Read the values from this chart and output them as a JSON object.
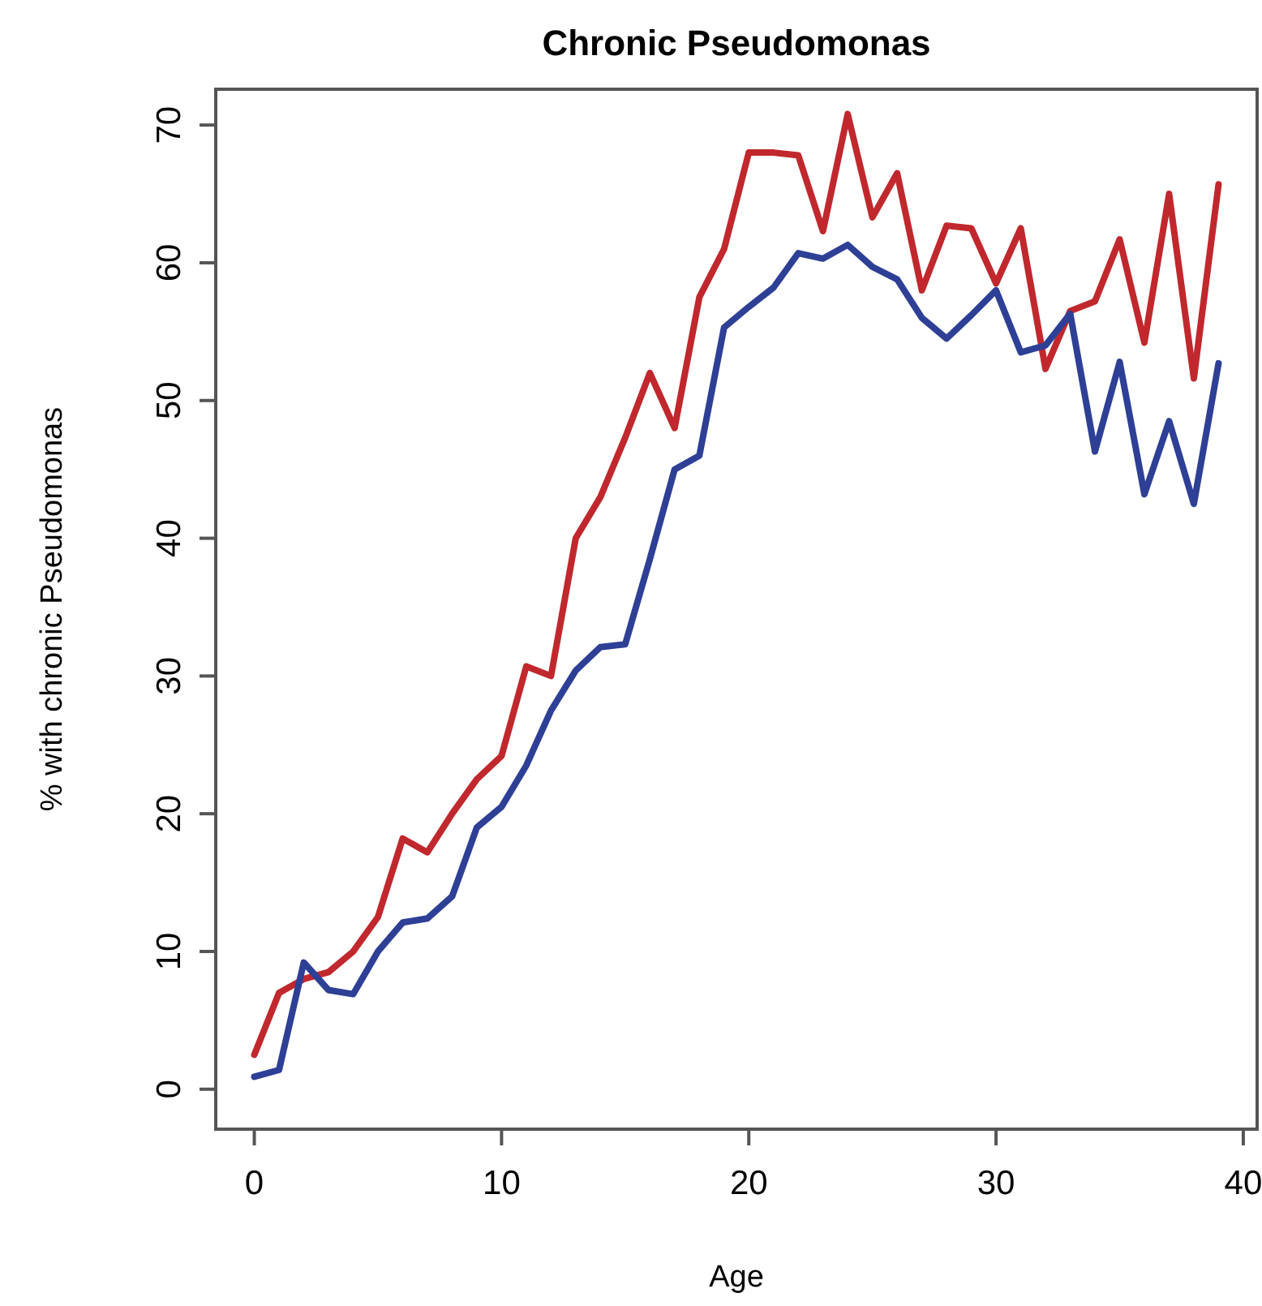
{
  "chart_data": {
    "type": "line",
    "title": "Chronic Pseudomonas",
    "xlabel": "Age",
    "ylabel": "% with chronic Pseudomonas",
    "x": [
      0,
      1,
      2,
      3,
      4,
      5,
      6,
      7,
      8,
      9,
      10,
      11,
      12,
      13,
      14,
      15,
      16,
      17,
      18,
      19,
      20,
      21,
      22,
      23,
      24,
      25,
      26,
      27,
      28,
      29,
      30,
      31,
      32,
      33,
      34,
      35,
      36,
      37,
      38,
      39
    ],
    "series": [
      {
        "color": "#c0282d",
        "values": [
          2.5,
          7,
          8,
          8.5,
          10,
          12.5,
          18.2,
          17.2,
          20,
          22.5,
          24.2,
          30.7,
          30,
          40,
          43,
          47.3,
          52,
          48,
          57.5,
          61,
          68,
          68,
          67.8,
          62.3,
          70.8,
          63.3,
          66.5,
          58,
          62.7,
          62.5,
          58.5,
          62.5,
          52.3,
          56.5,
          57.2,
          61.7,
          54.2,
          65,
          51.6,
          65.7
        ]
      },
      {
        "color": "#2e3f96",
        "values": [
          0.9,
          1.4,
          9.2,
          7.2,
          6.9,
          10,
          12.1,
          12.4,
          14,
          19,
          20.5,
          23.5,
          27.5,
          30.4,
          32.1,
          32.3,
          38.5,
          45,
          46,
          55.3,
          56.8,
          58.2,
          60.7,
          60.3,
          61.3,
          59.7,
          58.8,
          56,
          54.5,
          56.2,
          58,
          53.5,
          54,
          56.3,
          46.3,
          52.8,
          43.2,
          48.5,
          42.5,
          52.7
        ]
      }
    ],
    "xlim": [
      -1.56,
      40.56
    ],
    "ylim": [
      -2.9,
      72.6
    ],
    "xticks": [
      0,
      10,
      20,
      30,
      40
    ],
    "yticks": [
      0,
      10,
      20,
      30,
      40,
      50,
      60,
      70
    ],
    "grid": false,
    "line_style": "solid",
    "marker": "none"
  }
}
